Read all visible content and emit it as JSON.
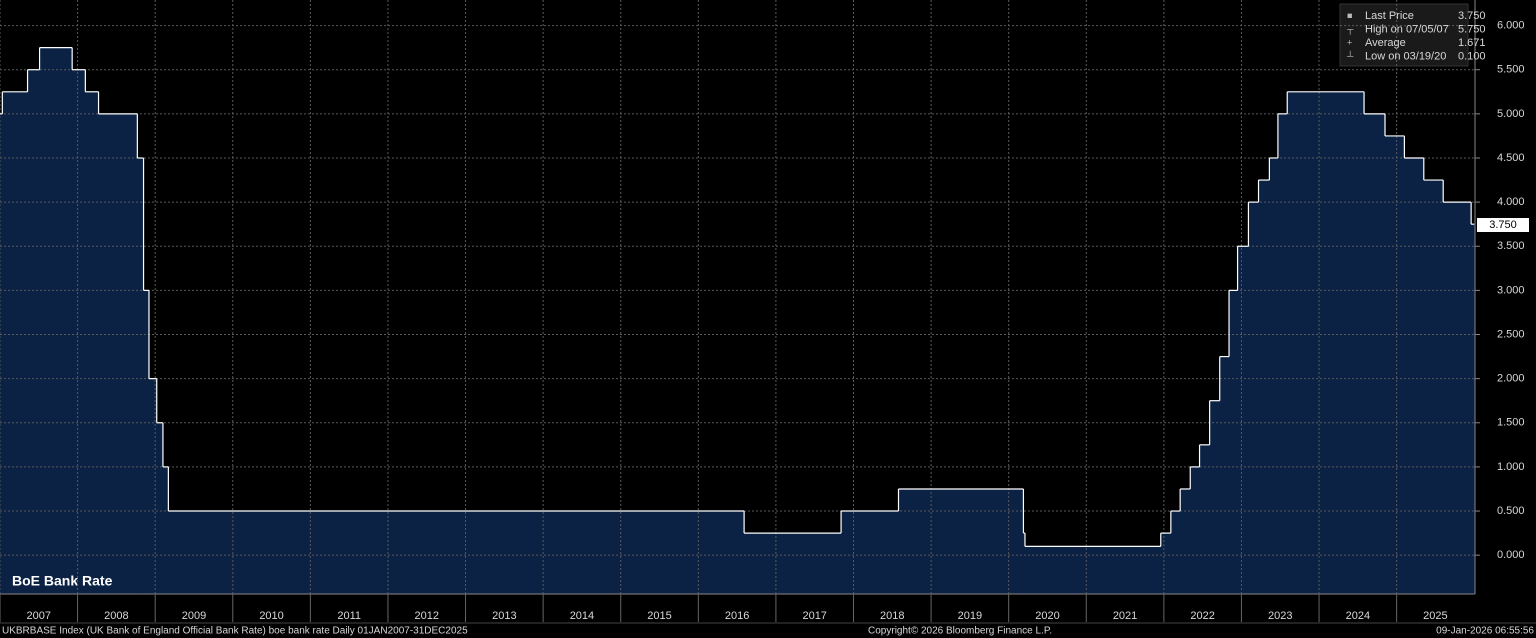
{
  "chart_data": {
    "type": "step-area",
    "title": "BoE Bank Rate",
    "x": [
      2007.0,
      2007.03,
      2007.355,
      2007.51,
      2007.93,
      2008.1,
      2008.27,
      2008.77,
      2008.85,
      2008.92,
      2009.02,
      2009.1,
      2009.17,
      2016.59,
      2017.84,
      2018.58,
      2020.19,
      2020.21,
      2021.96,
      2022.09,
      2022.21,
      2022.34,
      2022.46,
      2022.59,
      2022.72,
      2022.84,
      2022.95,
      2023.09,
      2023.22,
      2023.36,
      2023.47,
      2023.59,
      2024.58,
      2024.85,
      2025.1,
      2025.35,
      2025.6,
      2025.96,
      2026.0
    ],
    "series": [
      {
        "name": "UKBRBASE Index",
        "color": "#ffffff",
        "values": [
          5.0,
          5.25,
          5.5,
          5.75,
          5.5,
          5.25,
          5.0,
          4.5,
          3.0,
          2.0,
          1.5,
          1.0,
          0.5,
          0.25,
          0.5,
          0.75,
          0.25,
          0.1,
          0.25,
          0.5,
          0.75,
          1.0,
          1.25,
          1.75,
          2.25,
          3.0,
          3.5,
          4.0,
          4.25,
          4.5,
          5.0,
          5.25,
          5.0,
          4.75,
          4.5,
          4.25,
          4.0,
          3.75,
          3.75
        ]
      }
    ],
    "area_color": "#0b2244",
    "xlim": [
      2007,
      2026.01
    ],
    "xticks": [
      2007,
      2008,
      2009,
      2010,
      2011,
      2012,
      2013,
      2014,
      2015,
      2016,
      2017,
      2018,
      2019,
      2020,
      2021,
      2022,
      2023,
      2024,
      2025
    ],
    "ylim": [
      -0.44,
      6.29
    ],
    "yticks": [
      {
        "value": 0,
        "label": "0.000"
      },
      {
        "value": 0.5,
        "label": "0.500"
      },
      {
        "value": 1,
        "label": "1.000"
      },
      {
        "value": 1.5,
        "label": "1.500"
      },
      {
        "value": 2,
        "label": "2.000"
      },
      {
        "value": 2.5,
        "label": "2.500"
      },
      {
        "value": 3,
        "label": "3.000"
      },
      {
        "value": 3.5,
        "label": "3.500"
      },
      {
        "value": 4,
        "label": "4.000"
      },
      {
        "value": 4.5,
        "label": "4.500"
      },
      {
        "value": 5,
        "label": "5.000"
      },
      {
        "value": 5.5,
        "label": "5.500"
      },
      {
        "value": 6,
        "label": "6.000"
      }
    ],
    "grid": true,
    "stats": [
      {
        "name": "Last Price",
        "text": "3.750"
      },
      {
        "name": "High on 07/05/07",
        "text": "5.750"
      },
      {
        "name": "Average",
        "text": "1.671"
      },
      {
        "name": "Low on 03/19/20",
        "text": "0.100"
      }
    ],
    "footer": {
      "source": "UKBRBASE Index (UK Bank of England Official Bank Rate) boe bank rate Daily 01JAN2007-31DEC2025",
      "copyright": "Copyright© 2026 Bloomberg Finance L.P.",
      "timestamp": "09-Jan-2026 06:55:56"
    }
  }
}
